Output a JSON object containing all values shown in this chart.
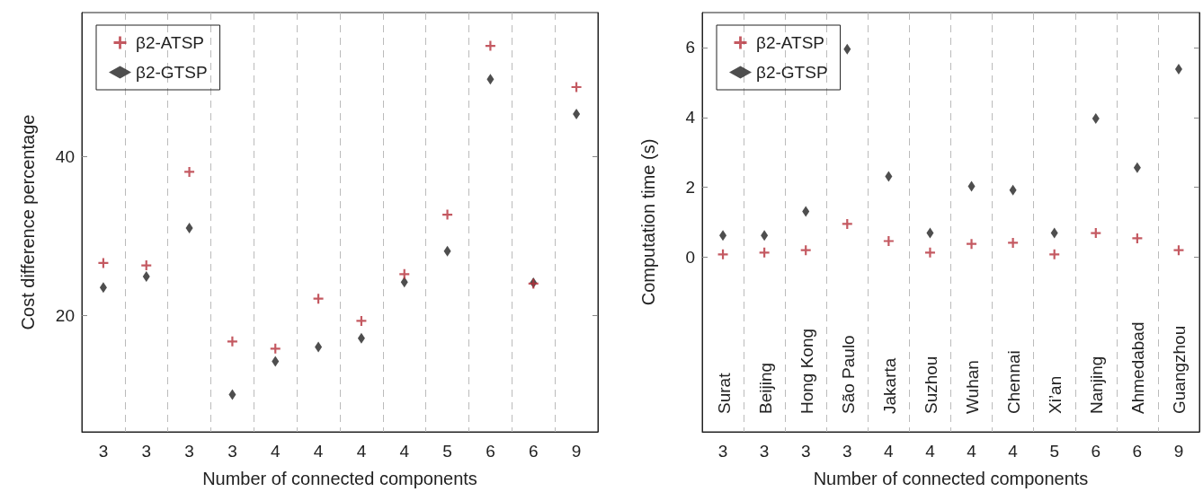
{
  "chart_data": [
    {
      "type": "scatter",
      "xlabel": "Number of connected components",
      "ylabel": "Cost difference percentage",
      "categories": [
        "3",
        "3",
        "3",
        "3",
        "4",
        "4",
        "4",
        "4",
        "5",
        "6",
        "6",
        "9"
      ],
      "ylim": [
        5.3,
        58.2
      ],
      "yticks": [
        20,
        40
      ],
      "grid": "x",
      "legend": "top left",
      "series": [
        {
          "name": "β2-ATSP",
          "color": "#b5303a",
          "marker": "cross",
          "values": [
            26.6,
            26.3,
            38.1,
            16.7,
            15.8,
            22.1,
            19.3,
            25.2,
            32.7,
            54.0,
            24.0,
            48.8
          ]
        },
        {
          "name": "β2-GTSP",
          "color": "#222222",
          "marker": "diamond",
          "values": [
            23.5,
            24.9,
            31.0,
            10.0,
            14.2,
            16.0,
            17.1,
            24.2,
            28.1,
            49.8,
            24.1,
            45.4
          ]
        }
      ]
    },
    {
      "type": "scatter",
      "xlabel": "Number of connected components",
      "ylabel": "Computation time (s)",
      "categories": [
        "3",
        "3",
        "3",
        "3",
        "4",
        "4",
        "4",
        "4",
        "5",
        "6",
        "6",
        "9"
      ],
      "ylim": [
        -5,
        7
      ],
      "yticks": [
        0,
        2,
        4,
        6
      ],
      "grid": "x",
      "legend": "top left",
      "annotations": [
        "Surat",
        "Beijing",
        "Hong Kong",
        "São Paulo",
        "Jakarta",
        "Suzhou",
        "Wuhan",
        "Chennai",
        "Xi’an",
        "Nanjing",
        "Ahmedabad",
        "Guangzhou"
      ],
      "series": [
        {
          "name": "β2-ATSP",
          "color": "#b5303a",
          "marker": "cross",
          "values": [
            0.08,
            0.13,
            0.2,
            0.95,
            0.46,
            0.13,
            0.38,
            0.41,
            0.08,
            0.69,
            0.54,
            0.2
          ]
        },
        {
          "name": "β2-GTSP",
          "color": "#222222",
          "marker": "diamond",
          "values": [
            0.62,
            0.62,
            1.31,
            5.95,
            2.31,
            0.69,
            2.03,
            1.92,
            0.69,
            3.97,
            2.56,
            5.38
          ]
        }
      ]
    }
  ]
}
